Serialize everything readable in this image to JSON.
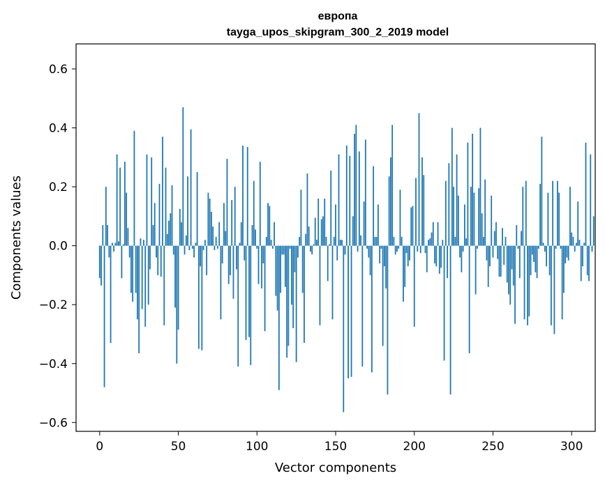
{
  "chart_data": {
    "type": "bar",
    "title": "европа",
    "subtitle": "tayga_upos_skipgram_300_2_2019 model",
    "xlabel": "Vector components",
    "ylabel": "Components values",
    "xlim": [
      -15,
      315
    ],
    "ylim": [
      -0.63,
      0.685
    ],
    "xticks": [
      0,
      50,
      100,
      150,
      200,
      250,
      300
    ],
    "xtick_labels": [
      "0",
      "50",
      "100",
      "150",
      "200",
      "250",
      "300"
    ],
    "yticks": [
      -0.6,
      -0.4,
      -0.2,
      0.0,
      0.2,
      0.4,
      0.6
    ],
    "ytick_labels": [
      "−0.6",
      "−0.4",
      "−0.2",
      "0.0",
      "0.2",
      "0.4",
      "0.6"
    ],
    "grid": false,
    "bar_color": "#1f77b4",
    "values": [
      -0.11,
      -0.135,
      0.07,
      -0.48,
      0.2,
      0.07,
      -0.04,
      -0.33,
      0.01,
      -0.02,
      0.01,
      0.31,
      0.015,
      0.265,
      -0.11,
      0.005,
      0.285,
      0.18,
      0.06,
      -0.04,
      -0.16,
      -0.19,
      0.39,
      -0.16,
      -0.25,
      -0.365,
      0.025,
      -0.215,
      0.02,
      -0.275,
      0.31,
      -0.2,
      -0.08,
      0.3,
      0.07,
      0.145,
      -0.04,
      -0.1,
      0.21,
      -0.105,
      0.37,
      -0.27,
      0.265,
      0.04,
      0.085,
      0.11,
      0.205,
      -0.03,
      -0.21,
      -0.4,
      -0.285,
      0.125,
      0.08,
      0.47,
      -0.03,
      0.035,
      0.235,
      -0.015,
      0.395,
      -0.01,
      -0.04,
      0.01,
      0.25,
      -0.35,
      -0.07,
      -0.355,
      -0.015,
      0.02,
      -0.1,
      0.18,
      0.16,
      0.115,
      0.065,
      -0.015,
      0.03,
      -0.01,
      0.08,
      -0.25,
      -0.06,
      0.145,
      0.05,
      0.295,
      -0.13,
      -0.1,
      0.155,
      -0.18,
      0.2,
      -0.08,
      -0.41,
      0.01,
      0.08,
      0.34,
      -0.05,
      -0.32,
      0.335,
      -0.31,
      -0.405,
      0.07,
      0.22,
      0.055,
      -0.01,
      -0.13,
      0.285,
      -0.145,
      -0.06,
      -0.29,
      0.03,
      0.145,
      0.135,
      0.02,
      -0.01,
      0.08,
      -0.17,
      -0.22,
      -0.49,
      -0.16,
      -0.03,
      -0.03,
      -0.14,
      -0.38,
      -0.34,
      -0.01,
      -0.2,
      -0.28,
      -0.09,
      -0.395,
      -0.04,
      0.03,
      0.19,
      -0.16,
      -0.33,
      0.04,
      0.245,
      0.065,
      -0.02,
      -0.03,
      0.005,
      0.095,
      0.02,
      0.16,
      -0.27,
      0.09,
      0.1,
      0.16,
      0.03,
      -0.12,
      0.005,
      0.255,
      -0.25,
      0.03,
      0.14,
      -0.05,
      0.31,
      0.02,
      0.02,
      -0.565,
      -0.03,
      0.34,
      -0.45,
      0.305,
      -0.445,
      0.1,
      0.38,
      0.41,
      -0.02,
      0.32,
      0.035,
      -0.41,
      0.15,
      0.36,
      -0.01,
      -0.04,
      -0.1,
      -0.43,
      0.27,
      0.03,
      0.03,
      0.14,
      -0.06,
      -0.01,
      -0.34,
      -0.07,
      -0.145,
      -0.505,
      0.235,
      0.3,
      0.41,
      0.03,
      -0.03,
      -0.02,
      -0.01,
      0.19,
      0.03,
      -0.19,
      -0.14,
      -0.025,
      -0.07,
      -0.05,
      0.13,
      0.135,
      -0.275,
      0.23,
      -0.02,
      0.45,
      -0.025,
      0.3,
      0.24,
      -0.025,
      -0.09,
      0.02,
      0.025,
      0.045,
      0.08,
      -0.06,
      -0.07,
      0.08,
      -0.095,
      -0.075,
      0.02,
      -0.39,
      0.22,
      -0.11,
      0.28,
      -0.505,
      0.4,
      0.2,
      0.03,
      0.31,
      0.17,
      -0.04,
      -0.09,
      -0.02,
      0.14,
      0.025,
      0.35,
      -0.365,
      0.2,
      0.38,
      0.18,
      -0.165,
      -0.01,
      0.195,
      0.4,
      0.11,
      0.03,
      0.225,
      -0.05,
      -0.14,
      -0.07,
      0.17,
      -0.04,
      0.05,
      0.08,
      -0.045,
      -0.105,
      -0.105,
      0.06,
      -0.065,
      0.03,
      -0.125,
      -0.165,
      -0.2,
      -0.08,
      -0.135,
      -0.265,
      0.07,
      -0.01,
      -0.11,
      0.05,
      0.2,
      -0.25,
      0.22,
      -0.27,
      -0.24,
      -0.1,
      -0.03,
      -0.055,
      -0.09,
      -0.11,
      -0.01,
      0.21,
      0.37,
      0.01,
      -0.02,
      -0.07,
      0.18,
      -0.1,
      -0.27,
      0.22,
      -0.3,
      -0.01,
      0.22,
      0.18,
      -0.01,
      -0.25,
      -0.16,
      -0.06,
      -0.04,
      -0.05,
      0.2,
      0.045,
      0.03,
      -0.02,
      0.01,
      0.15,
      0.02,
      -0.12,
      -0.07,
      0.01,
      0.35,
      -0.1,
      -0.12,
      0.31,
      -0.02,
      0.1
    ]
  }
}
